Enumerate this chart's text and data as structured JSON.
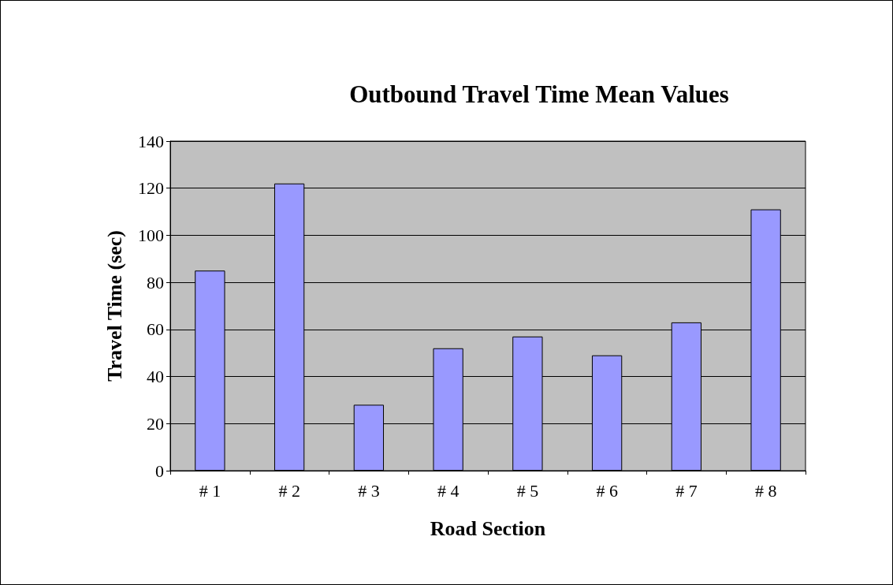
{
  "chart_data": {
    "type": "bar",
    "title": "Outbound Travel Time Mean Values",
    "xlabel": "Road Section",
    "ylabel": "Travel Time (sec)",
    "categories": [
      "# 1",
      "# 2",
      "# 3",
      "# 4",
      "# 5",
      "# 6",
      "# 7",
      "# 8"
    ],
    "values": [
      85,
      122,
      28,
      52,
      57,
      49,
      63,
      111
    ],
    "color": "#9999ff",
    "ylim": [
      0,
      140
    ],
    "yticks": [
      0,
      20,
      40,
      60,
      80,
      100,
      120,
      140
    ],
    "grid": "y"
  }
}
